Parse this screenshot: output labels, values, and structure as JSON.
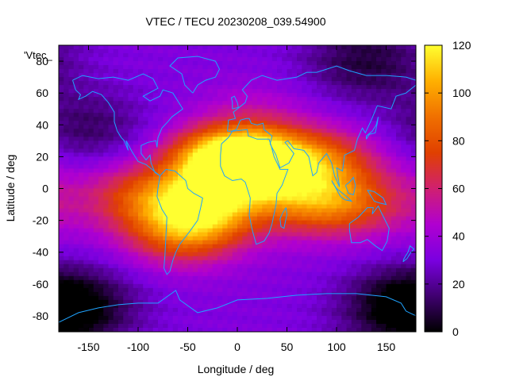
{
  "chart_data": {
    "type": "heatmap",
    "title": "VTEC / TECU 20230208_039.54900",
    "xlabel": "Longitude / deg",
    "ylabel": "Latitude / deg",
    "series_label": "'Vtec_",
    "xlim": [
      -180,
      180
    ],
    "ylim": [
      -90,
      90
    ],
    "x_ticks": [
      -150,
      -100,
      -50,
      0,
      50,
      100,
      150
    ],
    "y_ticks": [
      -80,
      -60,
      -40,
      -20,
      0,
      20,
      40,
      60,
      80
    ],
    "colorbar": {
      "range": [
        0,
        120
      ],
      "ticks": [
        0,
        20,
        40,
        60,
        80,
        100,
        120
      ],
      "palette": [
        "#000000",
        "#400070",
        "#7a00e0",
        "#b000d0",
        "#d02070",
        "#e04000",
        "#f07000",
        "#ffb000",
        "#ffff30"
      ]
    },
    "coastline_color": "#1fa3ff",
    "background_tec": 32,
    "features": [
      {
        "name": "equatorial-anomaly-atlantic-north",
        "lon": -10,
        "lat": 18,
        "value": 110
      },
      {
        "name": "africa-crest",
        "lon": 20,
        "lat": 15,
        "value": 100
      },
      {
        "name": "south-atlantic-anomaly",
        "lon": -35,
        "lat": -12,
        "value": 95
      },
      {
        "name": "south-america-south",
        "lon": -55,
        "lat": -30,
        "value": 72
      },
      {
        "name": "east-pacific-edge",
        "lon": -95,
        "lat": -5,
        "value": 62
      },
      {
        "name": "indian-ocean-north",
        "lon": 85,
        "lat": 18,
        "value": 70
      },
      {
        "name": "indian-ocean-south",
        "lon": 75,
        "lat": -8,
        "value": 72
      },
      {
        "name": "southeast-asia",
        "lon": 120,
        "lat": -10,
        "value": 55
      },
      {
        "name": "europe-mid",
        "lon": 20,
        "lat": 48,
        "value": 45
      },
      {
        "name": "north-pacific-low",
        "lon": -150,
        "lat": 35,
        "value": 10
      },
      {
        "name": "arctic-siberia-low",
        "lon": 130,
        "lat": 80,
        "value": 8
      },
      {
        "name": "antarctic-low",
        "lon": -165,
        "lat": -75,
        "value": 6
      },
      {
        "name": "antarctic-east-low",
        "lon": 165,
        "lat": -75,
        "value": 8
      }
    ]
  }
}
